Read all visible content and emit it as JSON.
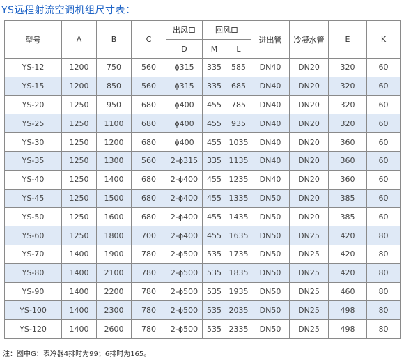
{
  "title": "YS远程射流空调机组尺寸表：",
  "headers": {
    "model": "型号",
    "a": "A",
    "b": "B",
    "c": "C",
    "outlet": "出风口",
    "return": "回风口",
    "inlet_pipe": "进出管",
    "condensate": "冷凝水管",
    "e": "E",
    "k": "K",
    "d": "D",
    "m": "M",
    "l": "L"
  },
  "rows": [
    [
      "YS-12",
      "1200",
      "750",
      "560",
      "ϕ315",
      "335",
      "585",
      "DN40",
      "DN20",
      "320",
      "60"
    ],
    [
      "YS-15",
      "1200",
      "850",
      "560",
      "ϕ315",
      "335",
      "685",
      "DN40",
      "DN20",
      "320",
      "60"
    ],
    [
      "YS-20",
      "1250",
      "950",
      "680",
      "ϕ400",
      "455",
      "785",
      "DN40",
      "DN20",
      "320",
      "60"
    ],
    [
      "YS-25",
      "1250",
      "1100",
      "680",
      "ϕ400",
      "455",
      "935",
      "DN40",
      "DN20",
      "320",
      "60"
    ],
    [
      "YS-30",
      "1250",
      "1200",
      "680",
      "ϕ400",
      "455",
      "1035",
      "DN40",
      "DN20",
      "360",
      "60"
    ],
    [
      "YS-35",
      "1250",
      "1300",
      "560",
      "2-ϕ315",
      "335",
      "1135",
      "DN40",
      "DN20",
      "360",
      "60"
    ],
    [
      "YS-40",
      "1250",
      "1400",
      "680",
      "2-ϕ400",
      "455",
      "1235",
      "DN40",
      "DN20",
      "360",
      "60"
    ],
    [
      "YS-45",
      "1250",
      "1500",
      "680",
      "2-ϕ400",
      "455",
      "1335",
      "DN50",
      "DN20",
      "385",
      "60"
    ],
    [
      "YS-50",
      "1250",
      "1600",
      "680",
      "2-ϕ400",
      "455",
      "1435",
      "DN50",
      "DN20",
      "385",
      "60"
    ],
    [
      "YS-60",
      "1250",
      "1800",
      "700",
      "2-ϕ400",
      "455",
      "1635",
      "DN50",
      "DN25",
      "420",
      "80"
    ],
    [
      "YS-70",
      "1400",
      "1900",
      "780",
      "2-ϕ500",
      "535",
      "1735",
      "DN50",
      "DN25",
      "420",
      "80"
    ],
    [
      "YS-80",
      "1400",
      "2100",
      "780",
      "2-ϕ500",
      "535",
      "1835",
      "DN50",
      "DN25",
      "420",
      "80"
    ],
    [
      "YS-90",
      "1400",
      "2200",
      "780",
      "2-ϕ500",
      "535",
      "1935",
      "DN50",
      "DN25",
      "460",
      "80"
    ],
    [
      "YS-100",
      "1400",
      "2300",
      "780",
      "2-ϕ500",
      "535",
      "2035",
      "DN50",
      "DN25",
      "498",
      "80"
    ],
    [
      "YS-120",
      "1400",
      "2600",
      "780",
      "2-ϕ500",
      "535",
      "2335",
      "DN50",
      "DN25",
      "498",
      "80"
    ]
  ],
  "note": "注：图中G：表冷器4排时为99；6排时为165。",
  "colors": {
    "title": "#1e63c6",
    "shade": "#dfe9f6",
    "border": "#8a8a8a"
  }
}
